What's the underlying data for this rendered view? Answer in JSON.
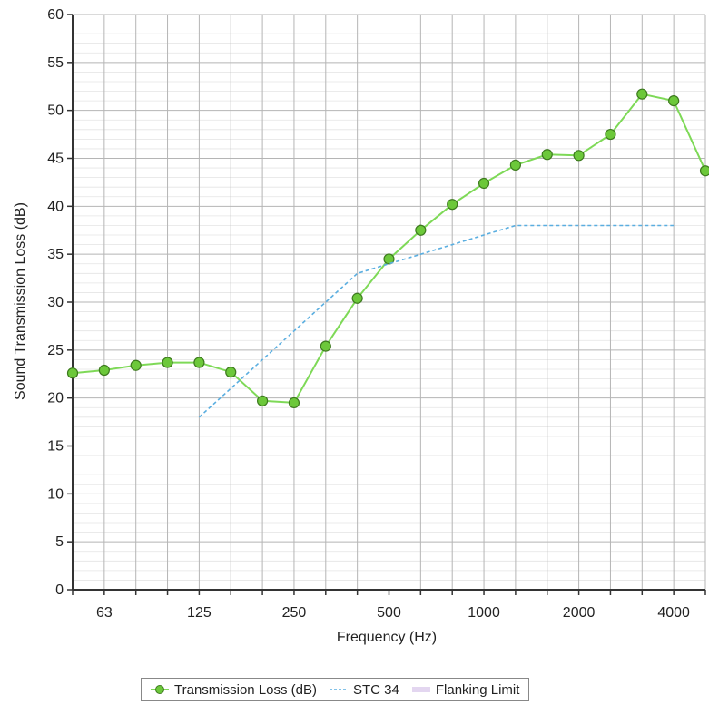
{
  "chart_data": {
    "type": "line",
    "xlabel": "Frequency (Hz)",
    "ylabel": "Sound Transmission Loss (dB)",
    "ylim": [
      0,
      60
    ],
    "yticks": [
      0,
      5,
      10,
      15,
      20,
      25,
      30,
      35,
      40,
      45,
      50,
      55,
      60
    ],
    "x_bands": [
      "50",
      "63",
      "80",
      "100",
      "125",
      "160",
      "200",
      "250",
      "315",
      "400",
      "500",
      "630",
      "800",
      "1000",
      "1250",
      "1600",
      "2000",
      "2500",
      "3150",
      "4000",
      "5000"
    ],
    "x_tick_labels": [
      "63",
      "125",
      "250",
      "500",
      "1000",
      "2000",
      "4000"
    ],
    "grid": true,
    "legend_position": "bottom-center",
    "series": [
      {
        "name": "Transmission Loss (dB)",
        "color": "#7ed957",
        "marker_color": "#6cc83a",
        "style": "solid-with-markers",
        "x": [
          "50",
          "63",
          "80",
          "100",
          "125",
          "160",
          "200",
          "250",
          "315",
          "400",
          "500",
          "630",
          "800",
          "1000",
          "1250",
          "1600",
          "2000",
          "2500",
          "3150",
          "4000",
          "5000"
        ],
        "values": [
          22.6,
          22.9,
          23.4,
          23.7,
          23.7,
          22.7,
          19.7,
          19.5,
          25.4,
          30.4,
          34.5,
          37.5,
          40.2,
          42.4,
          44.3,
          45.4,
          45.3,
          47.5,
          51.7,
          51.0,
          43.7
        ]
      },
      {
        "name": "STC 34",
        "color": "#5aaee0",
        "style": "dashed",
        "x": [
          "125",
          "160",
          "200",
          "250",
          "315",
          "400",
          "500",
          "630",
          "800",
          "1000",
          "1250",
          "1600",
          "2000",
          "2500",
          "3150",
          "4000"
        ],
        "values": [
          18,
          21,
          24,
          27,
          30,
          33,
          34,
          35,
          36,
          37,
          38,
          38,
          38,
          38,
          38,
          38
        ]
      },
      {
        "name": "Flanking Limit",
        "color": "#e3d6f0",
        "style": "solid",
        "x": [],
        "values": []
      }
    ]
  }
}
